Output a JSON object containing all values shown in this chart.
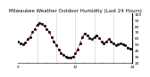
{
  "title": "Milwaukee Weather Outdoor Humidity (Last 24 Hours)",
  "x_values": [
    0,
    1,
    2,
    3,
    4,
    5,
    6,
    7,
    8,
    9,
    10,
    11,
    12,
    13,
    14,
    15,
    16,
    17,
    18,
    19,
    20,
    21,
    22,
    23,
    24,
    25,
    26,
    27,
    28,
    29,
    30,
    31,
    32,
    33,
    34,
    35,
    36,
    37,
    38,
    39,
    40,
    41,
    42,
    43,
    44,
    45,
    46,
    47
  ],
  "y_values": [
    55,
    52,
    50,
    53,
    58,
    62,
    70,
    75,
    82,
    85,
    83,
    80,
    75,
    70,
    62,
    55,
    48,
    42,
    36,
    33,
    30,
    29,
    28,
    30,
    35,
    42,
    52,
    62,
    68,
    65,
    60,
    58,
    62,
    65,
    60,
    55,
    52,
    55,
    58,
    55,
    52,
    48,
    50,
    52,
    50,
    48,
    45,
    43
  ],
  "line_color": "#cc0000",
  "marker_color": "#000000",
  "bg_color": "#ffffff",
  "grid_color": "#999999",
  "ylim_min": 20,
  "ylim_max": 100,
  "ytick_interval": 10,
  "vgrid_positions": [
    8,
    16,
    24,
    32,
    40
  ],
  "xtick_positions": [
    0,
    4,
    8,
    12,
    16,
    20,
    24,
    28,
    32,
    36,
    40,
    44,
    48
  ],
  "xtick_labels": [
    "0",
    "",
    "",
    "",
    "",
    "",
    "12",
    "",
    "",
    "",
    "",
    "",
    "24"
  ],
  "title_fontsize": 4.0,
  "axis_fontsize": 3.2
}
